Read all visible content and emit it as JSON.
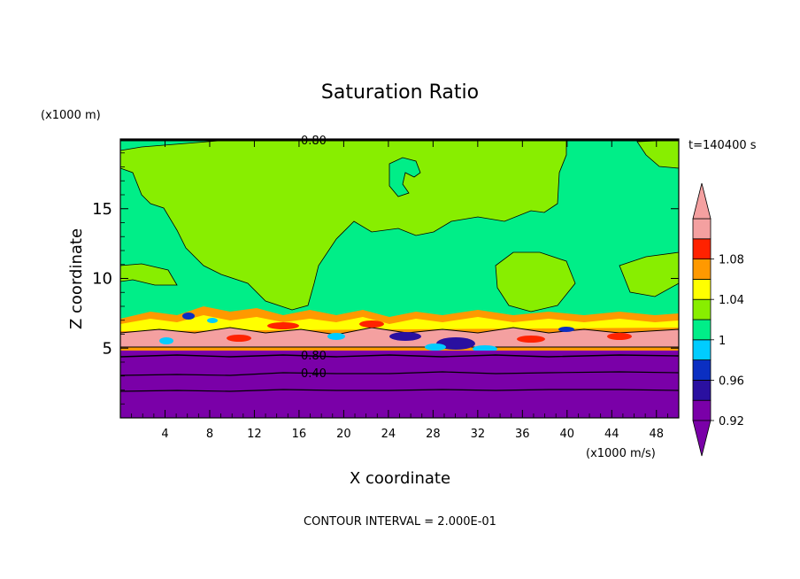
{
  "chart_data": {
    "type": "contour",
    "title": "Saturation Ratio",
    "xlabel": "X coordinate",
    "ylabel": "Z coordinate",
    "x_unit": "(x1000 m/s)",
    "y_unit": "(x1000 m)",
    "time_label": "t=140400 s",
    "footer": "CONTOUR INTERVAL = 2.000E-01",
    "xlim": [
      0,
      50
    ],
    "ylim": [
      0,
      20
    ],
    "x_ticks": [
      "4",
      "8",
      "12",
      "16",
      "20",
      "24",
      "28",
      "32",
      "36",
      "40",
      "44",
      "48"
    ],
    "y_ticks": [
      "5",
      "10",
      "15"
    ],
    "contour_labels": [
      "0.80",
      "0.80",
      "0.40"
    ],
    "colorbar": {
      "tick_labels": [
        "1.08",
        "1.04",
        "1",
        "0.96",
        "0.92"
      ],
      "colors": [
        "#7a00a8",
        "#2a10a0",
        "#0b2fc2",
        "#00ccff",
        "#00ee88",
        "#88ee00",
        "#ffff00",
        "#ff9900",
        "#ff2200",
        "#f4a0a0"
      ]
    }
  }
}
